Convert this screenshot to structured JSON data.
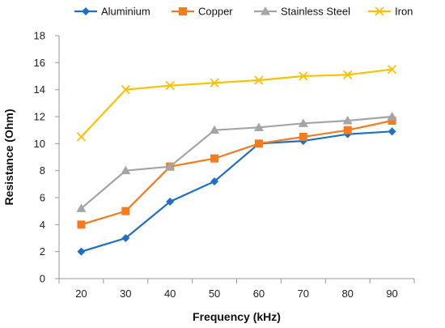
{
  "chart_data": {
    "type": "line",
    "title": "",
    "xlabel": "Frequency (kHz)",
    "ylabel": "Resistance (Ohm)",
    "categories": [
      "20",
      "30",
      "40",
      "50",
      "60",
      "70",
      "80",
      "90"
    ],
    "ylim": [
      0,
      18
    ],
    "yticks": [
      "0",
      "2",
      "4",
      "6",
      "8",
      "10",
      "12",
      "14",
      "16",
      "18"
    ],
    "grid": false,
    "legend": "top",
    "series": [
      {
        "name": "Aluminium",
        "color": "#1f6fc5",
        "marker": "diamond",
        "values": [
          2.0,
          3.0,
          5.7,
          7.2,
          10.0,
          10.2,
          10.7,
          10.9
        ]
      },
      {
        "name": "Copper",
        "color": "#f47b20",
        "marker": "square",
        "values": [
          4.0,
          5.0,
          8.3,
          8.9,
          10.0,
          10.5,
          11.0,
          11.7
        ]
      },
      {
        "name": "Stainless Steel",
        "color": "#a5a5a5",
        "marker": "triangle",
        "values": [
          5.2,
          8.0,
          8.3,
          11.0,
          11.2,
          11.5,
          11.7,
          12.0
        ]
      },
      {
        "name": "Iron",
        "color": "#ffc000",
        "marker": "x",
        "values": [
          10.5,
          14.0,
          14.3,
          14.5,
          14.7,
          15.0,
          15.1,
          15.5
        ]
      }
    ]
  }
}
